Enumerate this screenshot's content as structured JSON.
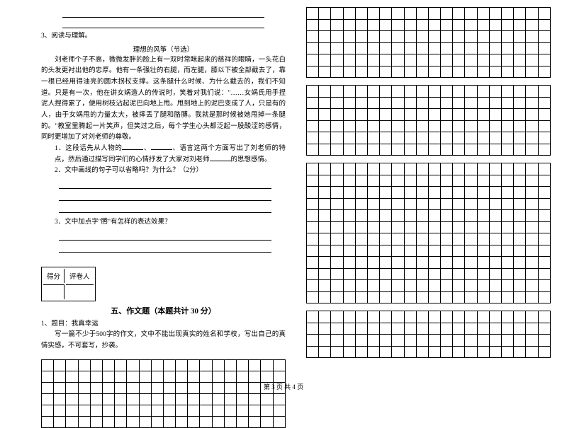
{
  "leftColumn": {
    "topLines": 2,
    "readingLabel": "3、阅读与理解。",
    "readingTitle": "理想的风筝（节选）",
    "passage": "刘老师个子不高，微微发胖的脸上有一双时常眯起来的慈祥的眼睛，一头花白的头发更衬出他的忠厚。他有一条强壮的右腿，而左腿，膝以下被全部截去了，靠一根已经用得油亮的圆木拐杖支撑。这条腿什么时候、为什么截去的，我们不知道。只是有一次，他在讲女娲造人的传说时，笑着对我们说：\"……女娲氏用手捏泥人捏得累了，便用树枝沾起泥巴向地上甩。甩到地上的泥巴变成了人，只是有的人，由于女娲甩的力量太大，被摔丢了腿和胳膊。我就是那时候被她甩掉一条腿的。\"教室里腾起一片笑声，但笑过之后，每个学生心头都泛起一股酸涩的感情，同时更增加了对刘老师的尊敬。",
    "q1_prefix": "1．这段话先从人物的",
    "q1_mid": "、",
    "q1_after": "、语言这两个方面写出了刘老师的特点，然后通过描写同学们的心情抒发了大家对刘老师",
    "q1_end": "的思想感情。",
    "q2": "2．文中画线的句子可以省略吗？为什么？（2分）",
    "q2_lines": 3,
    "q3": "3．文中加点字\"腾\"有怎样的表达效果？",
    "q3_lines": 2,
    "scoreLabels": [
      "得分",
      "评卷人"
    ],
    "sectionTitle": "五、作文题（本题共计 30 分）",
    "essayPrompt1": "1、题目：我真幸运",
    "essayPrompt2": "写一篇不少于500字的作文，文中不能出现真实的姓名和学校，写出自己的真情实感，不可套写，抄袭。",
    "leftGrid": {
      "rows": 6,
      "cols": 20
    }
  },
  "rightColumn": {
    "topGrid": {
      "rows": 6,
      "cols": 20
    },
    "midGrid": {
      "rows": 6,
      "cols": 20
    },
    "bigGrid": {
      "rows": 12,
      "cols": 20
    },
    "bottomGrid": {
      "rows": 4,
      "cols": 20
    }
  },
  "footer": "第 3 页  共 4 页",
  "colors": {
    "bg": "#ffffff",
    "text": "#000000",
    "line": "#000000"
  }
}
